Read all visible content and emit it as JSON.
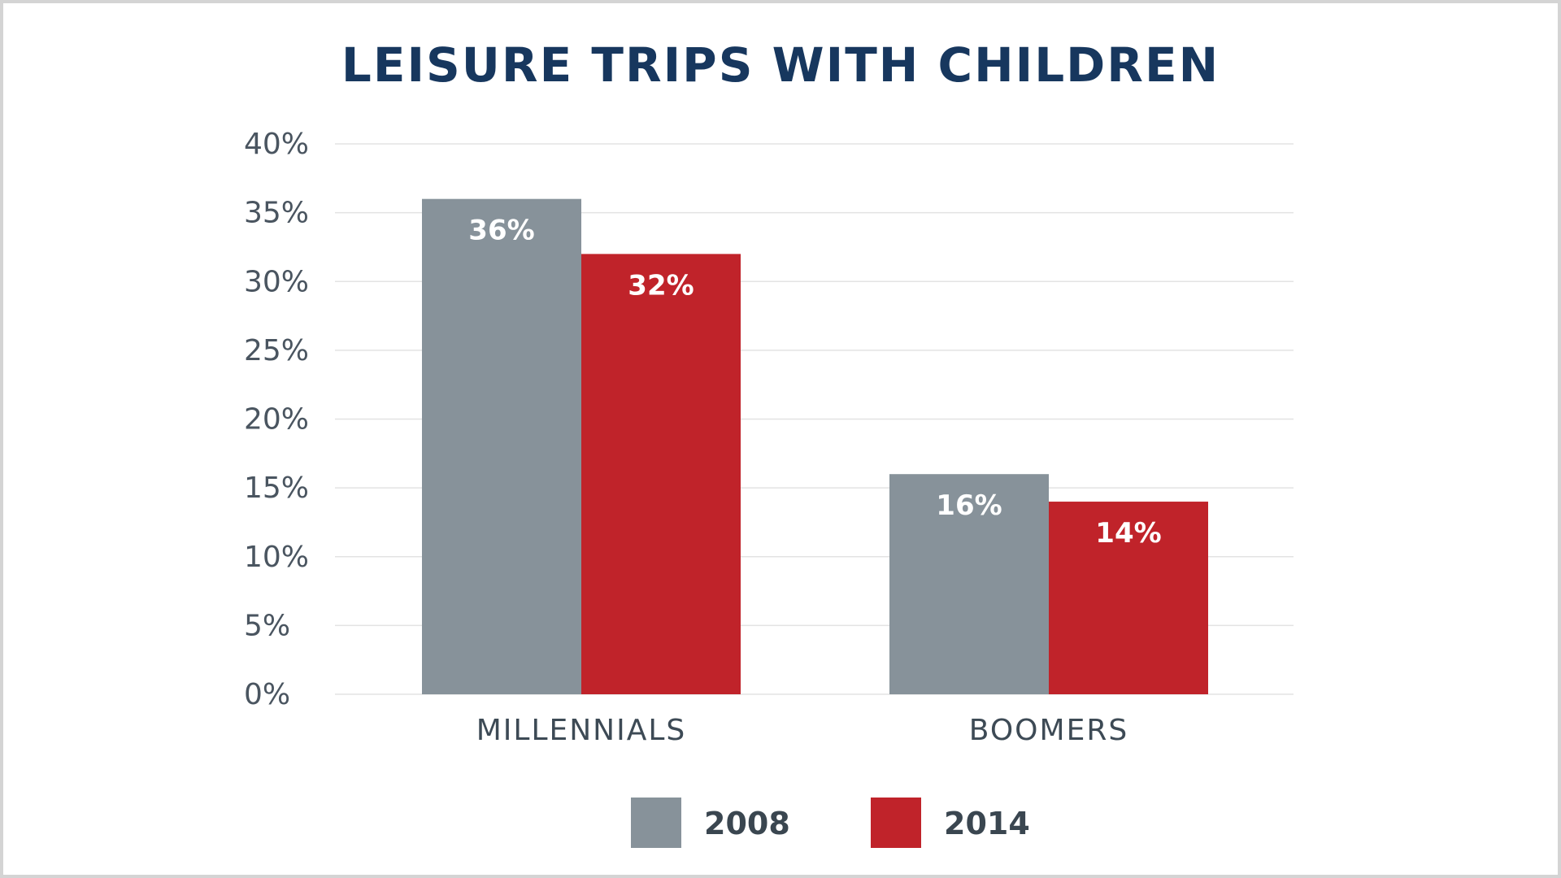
{
  "chart_data": {
    "type": "bar",
    "title": "LEISURE TRIPS WITH CHILDREN",
    "categories": [
      "MILLENNIALS",
      "BOOMERS"
    ],
    "series": [
      {
        "name": "2008",
        "values": [
          36,
          16
        ],
        "color": "#87929a"
      },
      {
        "name": "2014",
        "values": [
          32,
          14
        ],
        "color": "#c0232a"
      }
    ],
    "value_labels": [
      [
        "36%",
        "16%"
      ],
      [
        "32%",
        "14%"
      ]
    ],
    "ylim": [
      0,
      40
    ],
    "yticks": [
      0,
      5,
      10,
      15,
      20,
      25,
      30,
      35,
      40
    ],
    "ytick_labels": [
      "0%",
      "5%",
      "10%",
      "15%",
      "20%",
      "25%",
      "30%",
      "35%",
      "40%"
    ],
    "xlabel": "",
    "ylabel": "",
    "grid": true,
    "legend_position": "bottom-center"
  },
  "colors": {
    "title": "#17375e",
    "grid": "#e3e3e3",
    "frame": "#d4d4d4"
  }
}
